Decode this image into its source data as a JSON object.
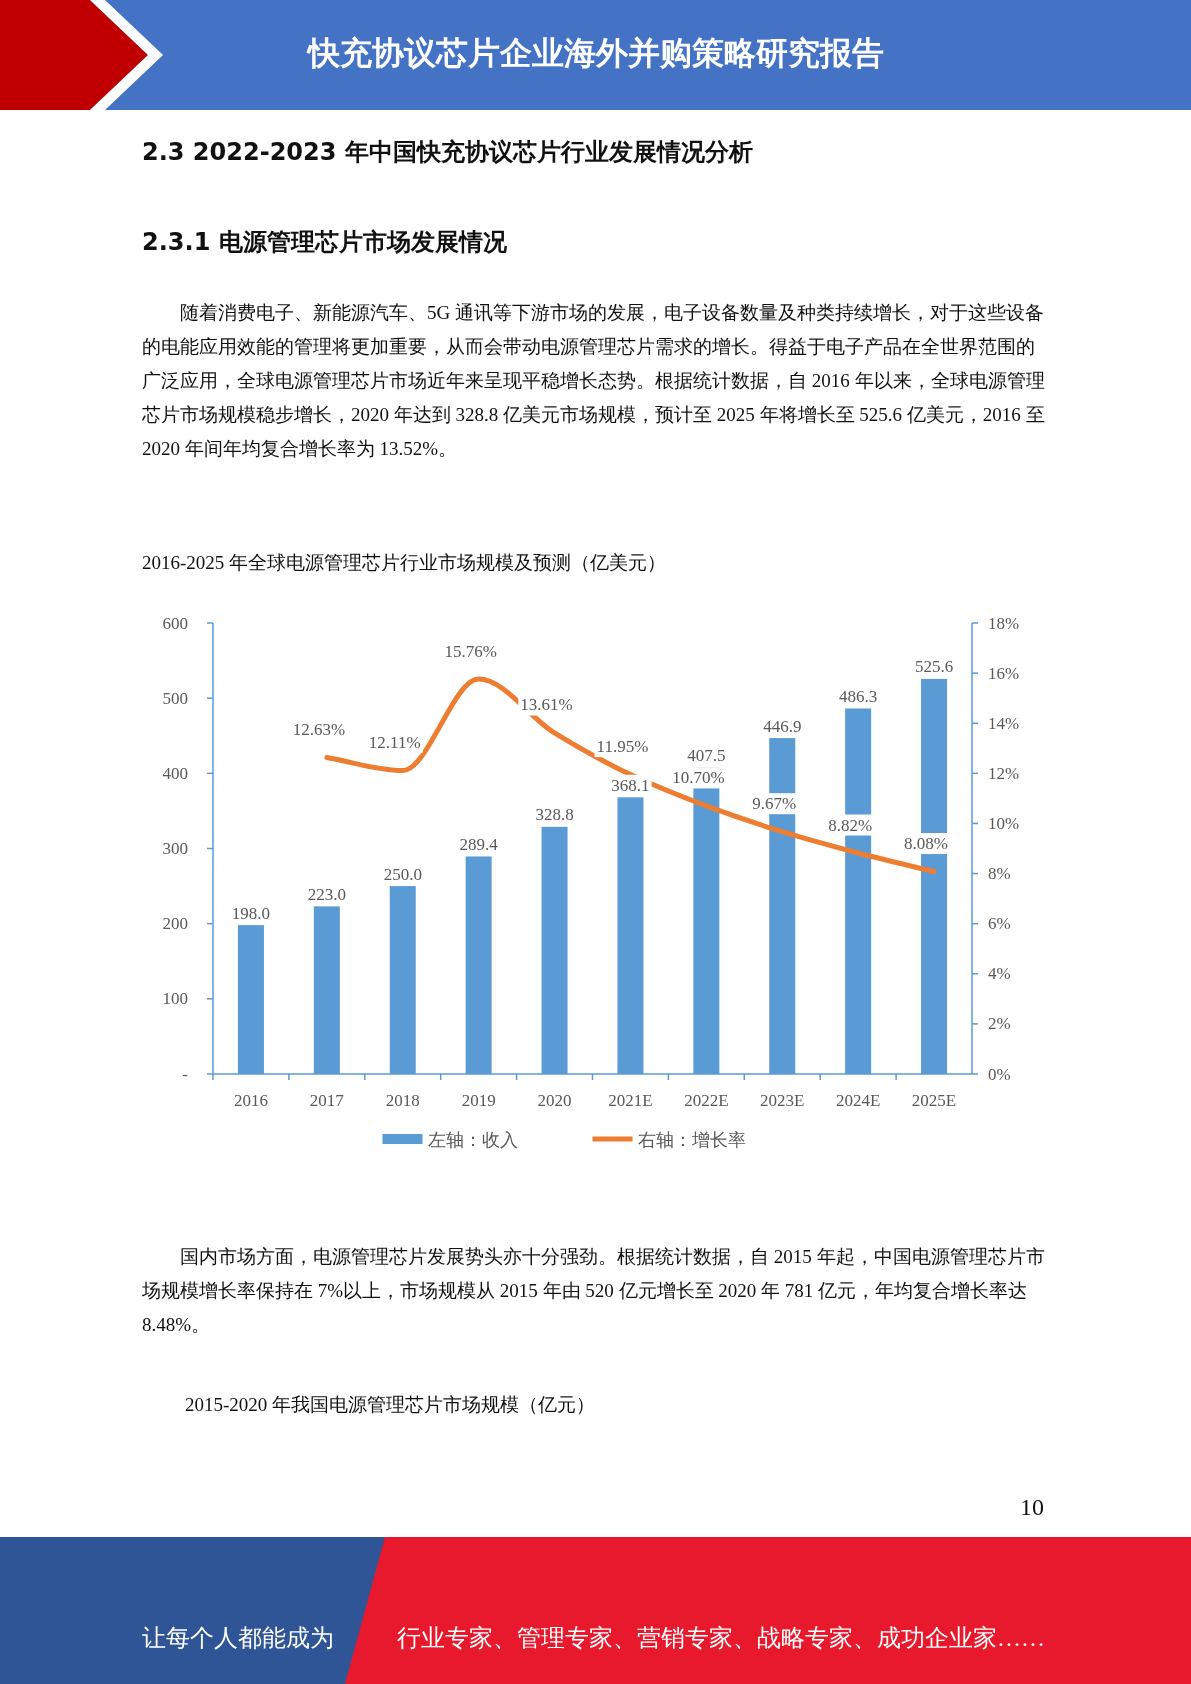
{
  "chart_data": {
    "type": "bar",
    "title": "2016-2025 年全球电源管理芯片行业市场规模及预测（亿美元）",
    "categories": [
      "2016",
      "2017",
      "2018",
      "2019",
      "2020",
      "2021E",
      "2022E",
      "2023E",
      "2024E",
      "2025E"
    ],
    "series": [
      {
        "name": "左轴：收入",
        "color": "#5b9bd5",
        "values": [
          198.0,
          223.0,
          250.0,
          289.4,
          328.8,
          368.1,
          407.5,
          446.9,
          486.3,
          525.6
        ],
        "value_labels": [
          "198.0",
          "223.0",
          "250.0",
          "289.4",
          "328.8",
          "368.1",
          "407.5",
          "446.9",
          "486.3",
          "525.6"
        ]
      },
      {
        "name": "右轴：增长率",
        "type": "line",
        "axis": "y2",
        "color": "#ed7d31",
        "values": [
          null,
          12.63,
          12.11,
          15.76,
          13.61,
          11.95,
          10.7,
          9.67,
          8.82,
          8.08
        ],
        "value_labels": [
          null,
          "12.63%",
          "12.11%",
          "15.76%",
          "13.61%",
          "11.95%",
          "10.70%",
          "9.67%",
          "8.82%",
          "8.08%"
        ]
      }
    ],
    "ylim": [
      0,
      600
    ],
    "yticks": [
      {
        "value": 0,
        "label": "-"
      },
      100,
      200,
      300,
      400,
      500,
      600
    ],
    "y2lim": [
      0,
      18
    ],
    "y2ticks": [
      {
        "value": 0,
        "label": "0%"
      },
      {
        "value": 2,
        "label": "2%"
      },
      {
        "value": 4,
        "label": "4%"
      },
      {
        "value": 6,
        "label": "6%"
      },
      {
        "value": 8,
        "label": "8%"
      },
      {
        "value": 10,
        "label": "10%"
      },
      {
        "value": 12,
        "label": "12%"
      },
      {
        "value": 14,
        "label": "14%"
      },
      {
        "value": 16,
        "label": "16%"
      },
      {
        "value": 18,
        "label": "18%"
      }
    ],
    "grid": false,
    "legend": "bottom",
    "annotations": [
      "快充协议芯片企业海外并购策略研究报告",
      "2.3 2022-2023 年中国快充协议芯片行业发展情况分析",
      "2.3.1 电源管理芯片市场发展情况",
      "随着消费电子、新能源汽车、5G 通讯等下游市场的发展，电子设备数量及种类持续增长，对于这些设备的电能应用效能的管理将更加重要，从而会带动电源管理芯片需求的增长。得益于电子产品在全世界范围的广泛应用，全球电源管理芯片市场近年来呈现平稳增长态势。根据统计数据，自 2016 年以来，全球电源管理芯片市场规模稳步增长，2020 年达到 328.8 亿美元市场规模，预计至 2025 年将增长至 525.6 亿美元，2016 至 2020 年间年均复合增长率为 13.52%。",
      "国内市场方面，电源管理芯片发展势头亦十分强劲。根据统计数据，自 2015 年起，中国电源管理芯片市场规模增长率保持在 7%以上，市场规模从 2015 年由 520 亿元增长至 2020 年 781 亿元，年均复合增长率达 8.48%。",
      "2015-2020 年我国电源管理芯片市场规模（亿元）",
      "10",
      "让每个人都能成为",
      "行业专家、管理专家、营销专家、战略专家、成功企业家……"
    ]
  }
}
